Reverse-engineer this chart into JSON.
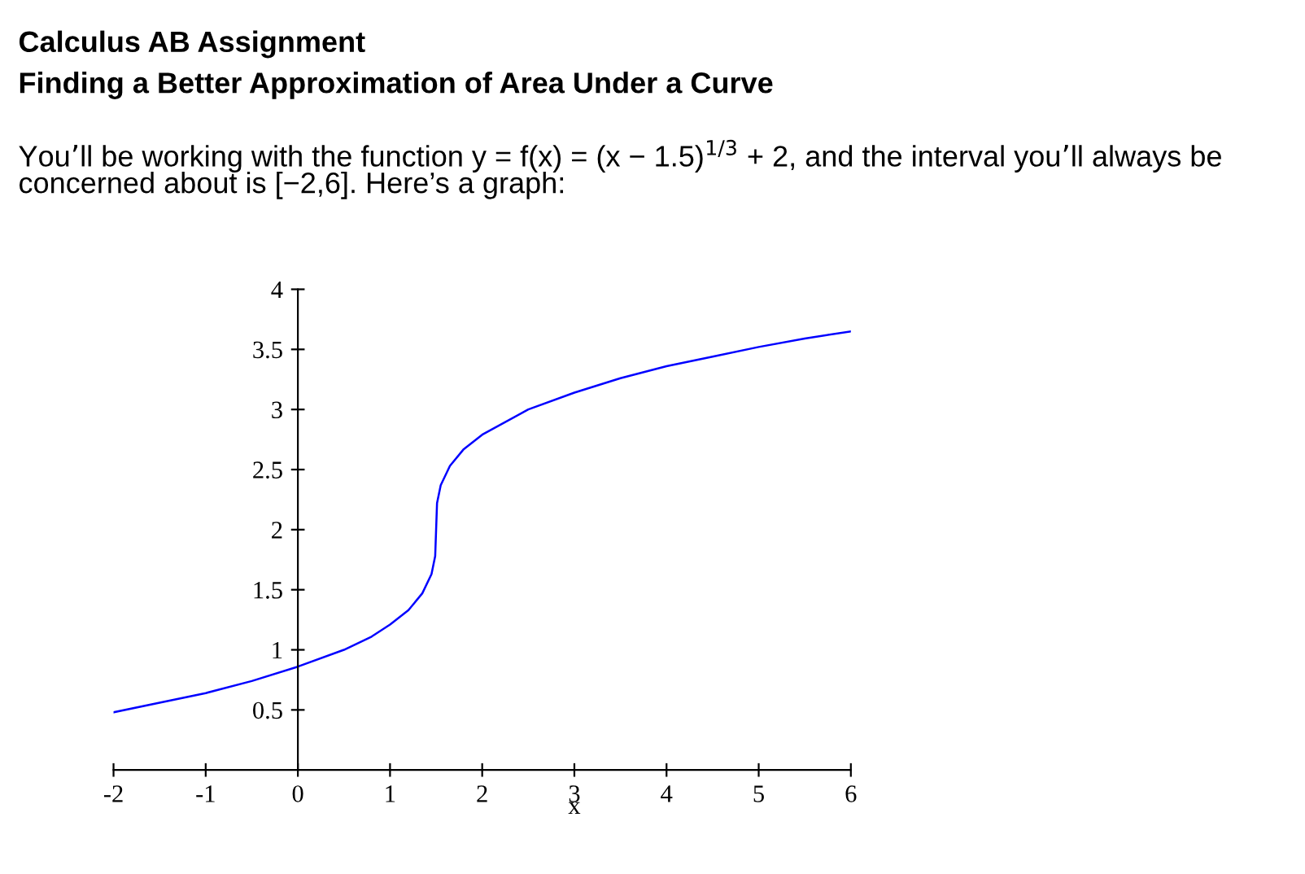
{
  "chart_data": {
    "type": "line",
    "title": "Calculus AB Assignment",
    "subtitle": "Finding a Better Approximation of Area Under a Curve",
    "annotations": [
      "You’ll be working with the function y = f(x) = (x − 1.5)$^{1/3}$ + 2, and the interval you’ll always be concerned about is [−2,6]. Here’s a graph:"
    ],
    "xlabel": "x",
    "series": [
      {
        "color": "#0000ff",
        "x": [
          -2,
          -1.5,
          -1,
          -0.5,
          0,
          0.5,
          0.8,
          1.0,
          1.2,
          1.35,
          1.45,
          1.49,
          1.5,
          1.51,
          1.55,
          1.65,
          1.8,
          2.0,
          2.5,
          3,
          3.5,
          4,
          4.5,
          5,
          5.5,
          6
        ],
        "values": [
          0.48,
          0.56,
          0.64,
          0.74,
          0.86,
          1.0,
          1.11,
          1.21,
          1.33,
          1.47,
          1.63,
          1.78,
          2.0,
          2.22,
          2.37,
          2.53,
          2.67,
          2.79,
          3.0,
          3.14,
          3.26,
          3.36,
          3.44,
          3.52,
          3.59,
          3.65
        ]
      }
    ],
    "xlim": [
      -2,
      6
    ],
    "ylim": [
      0,
      4
    ],
    "xticks": [
      -2,
      -1,
      0,
      1,
      2,
      3,
      4,
      5,
      6
    ],
    "yticks": [
      0.5,
      1,
      1.5,
      2,
      2.5,
      3,
      3.5,
      4
    ],
    "grid": false,
    "legend": false,
    "marker": "none",
    "line_style": "solid"
  }
}
